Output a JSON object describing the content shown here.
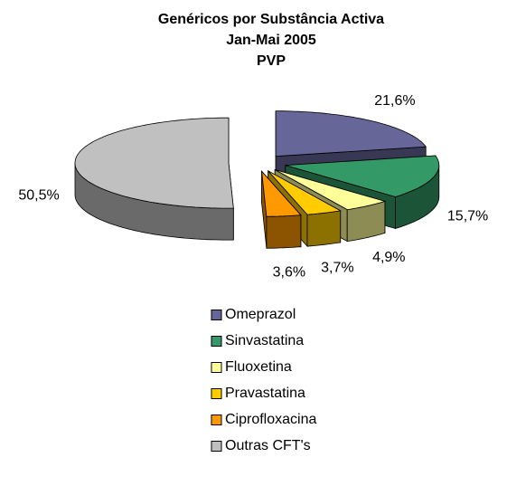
{
  "chart_data": {
    "type": "pie3d",
    "title": [
      "Genéricos por Substância Activa",
      "Jan-Mai 2005",
      "PVP"
    ],
    "categories": [
      "Omeprazol",
      "Sinvastatina",
      "Fluoxetina",
      "Pravastatina",
      "Ciprofloxacina",
      "Outras CFT's"
    ],
    "values": [
      21.6,
      15.7,
      4.9,
      3.7,
      3.6,
      50.5
    ],
    "value_labels": [
      "21,6%",
      "15,7%",
      "4,9%",
      "3,7%",
      "3,6%",
      "50,5%"
    ],
    "colors": [
      "#666699",
      "#339966",
      "#FFFF99",
      "#FFCC00",
      "#FF9900",
      "#C0C0C0"
    ],
    "legend": "bottom"
  }
}
